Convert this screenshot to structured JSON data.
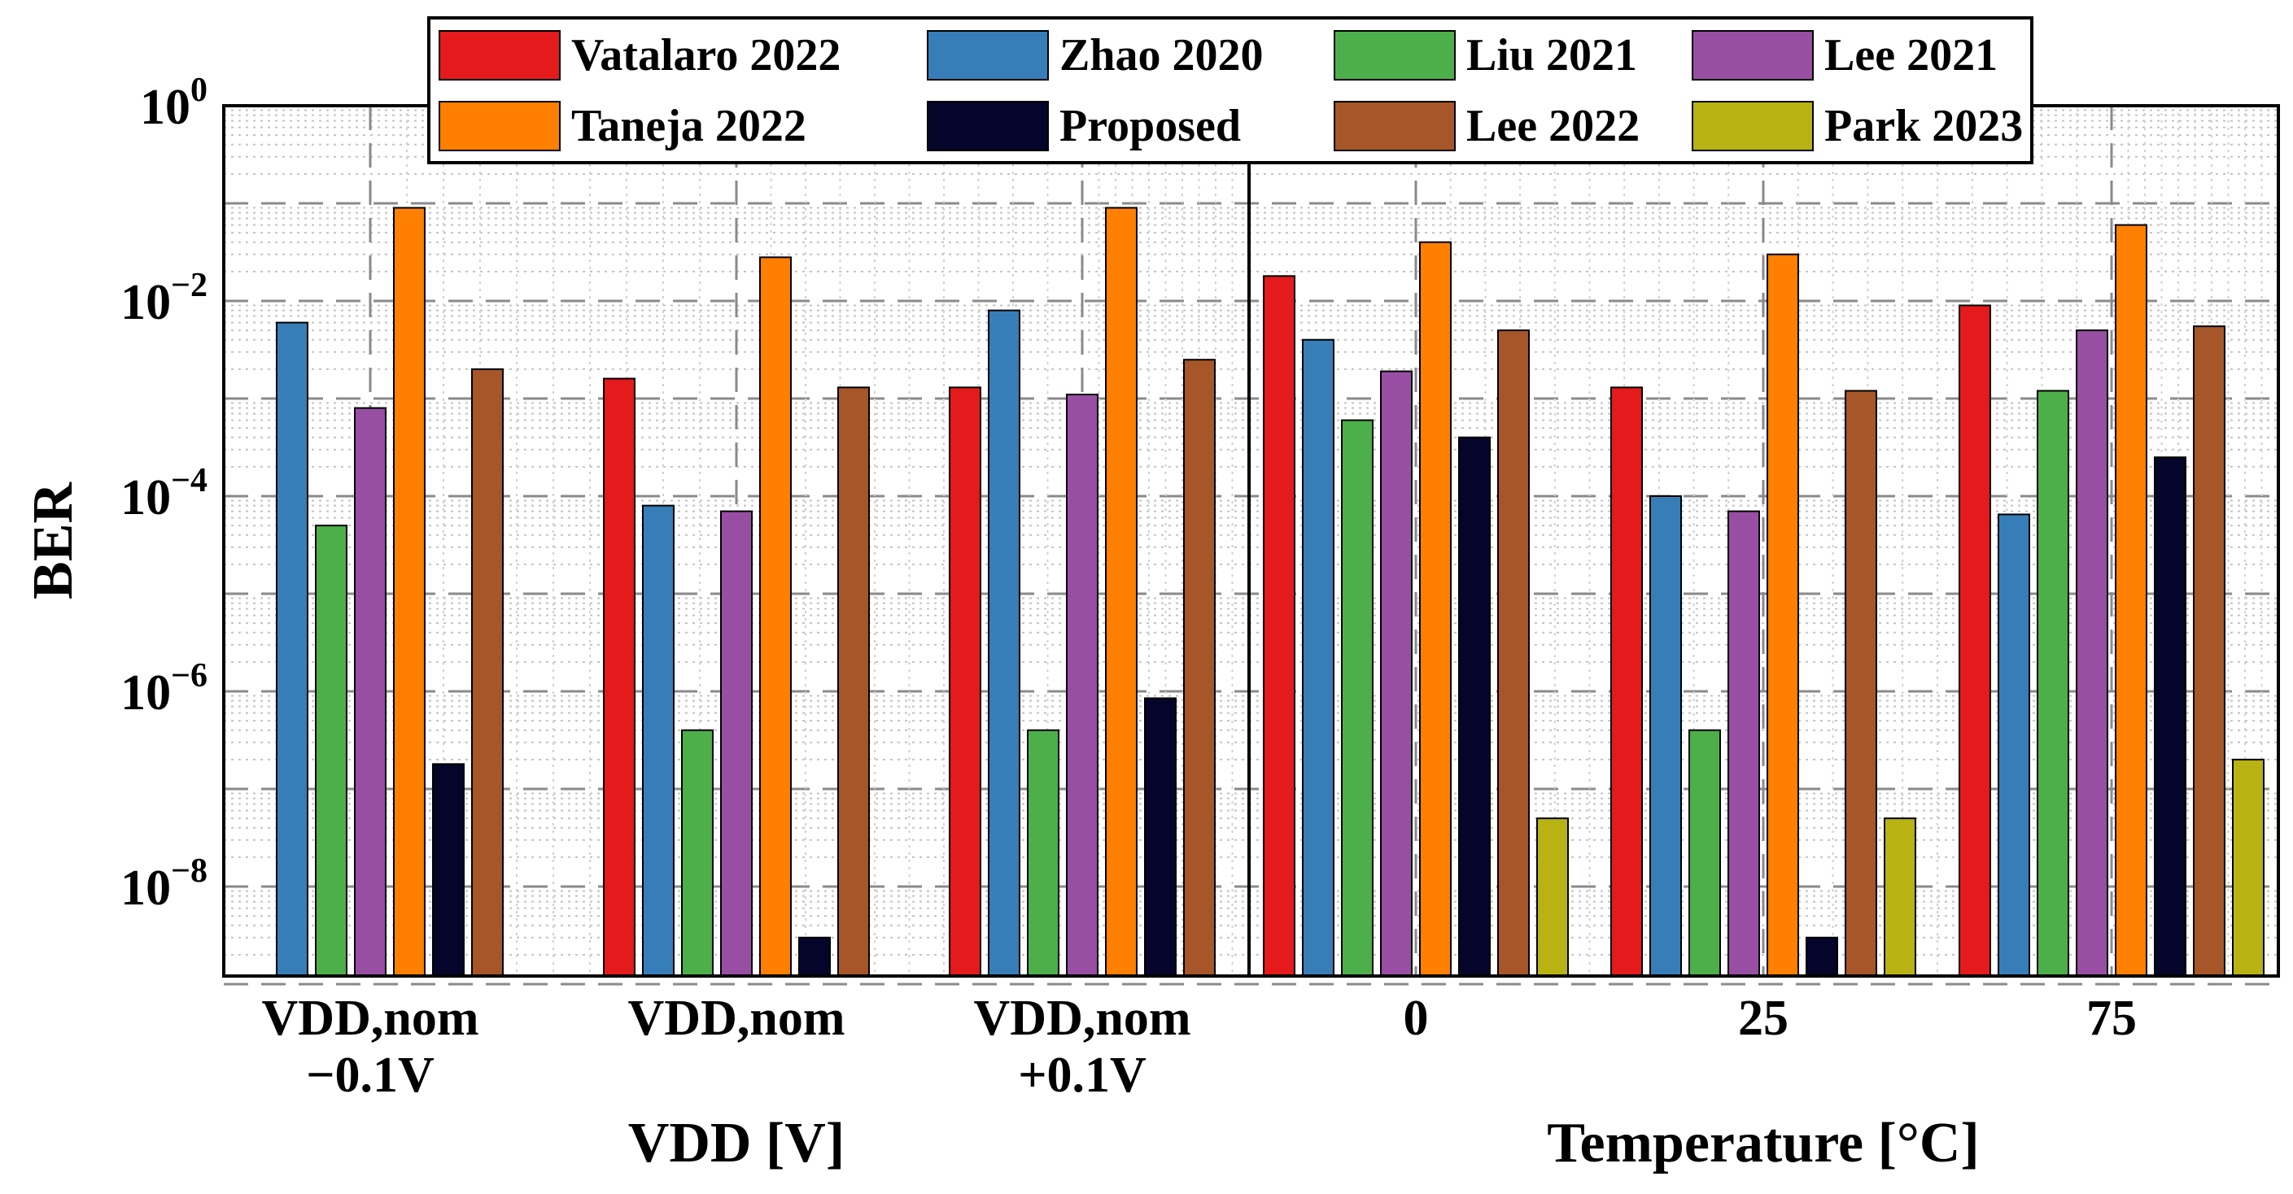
{
  "chart_data": {
    "type": "bar",
    "yscale": "log",
    "ylabel": "BER",
    "ylim": [
      1e-09,
      1
    ],
    "grid": true,
    "legend_position": "top",
    "colors": {
      "Vatalaro 2022": "#e41a1c",
      "Zhao 2020": "#377eb8",
      "Liu 2021": "#4daf4a",
      "Lee 2021": "#984ea3",
      "Taneja 2022": "#ff7f00",
      "Proposed": "#05052b",
      "Lee 2022": "#a65628",
      "Park 2023": "#b8b213"
    },
    "legend": [
      "Vatalaro 2022",
      "Zhao 2020",
      "Liu 2021",
      "Lee 2021",
      "Taneja 2022",
      "Proposed",
      "Lee 2022",
      "Park 2023"
    ],
    "y_tick_labels": [
      {
        "base": "10",
        "exp": "0"
      },
      {
        "base": "10",
        "exp": "−2"
      },
      {
        "base": "10",
        "exp": "−4"
      },
      {
        "base": "10",
        "exp": "−6"
      },
      {
        "base": "10",
        "exp": "−8"
      }
    ],
    "panels": [
      {
        "name": "vdd",
        "xlabel": "VDD [V]",
        "categories": [
          {
            "line1": "VDD,nom",
            "line2": "−0.1V"
          },
          {
            "line1": "VDD,nom",
            "line2": ""
          },
          {
            "line1": "VDD,nom",
            "line2": "+0.1V"
          }
        ],
        "series": [
          {
            "name": "Vatalaro 2022",
            "values": [
              null,
              0.0016,
              0.0013
            ]
          },
          {
            "name": "Zhao 2020",
            "values": [
              0.006,
              8e-05,
              0.008
            ]
          },
          {
            "name": "Liu 2021",
            "values": [
              5e-05,
              4e-07,
              4e-07
            ]
          },
          {
            "name": "Lee 2021",
            "values": [
              0.0008,
              7e-05,
              0.0011
            ]
          },
          {
            "name": "Taneja 2022",
            "values": [
              0.09,
              0.028,
              0.09
            ]
          },
          {
            "name": "Proposed",
            "values": [
              1.8e-07,
              3e-09,
              8.5e-07
            ]
          },
          {
            "name": "Lee 2022",
            "values": [
              0.002,
              0.0013,
              0.0025
            ]
          },
          {
            "name": "Park 2023",
            "values": [
              null,
              null,
              null
            ]
          }
        ]
      },
      {
        "name": "temperature",
        "xlabel": "Temperature [°C]",
        "categories": [
          {
            "line1": "0",
            "line2": ""
          },
          {
            "line1": "25",
            "line2": ""
          },
          {
            "line1": "75",
            "line2": ""
          }
        ],
        "series": [
          {
            "name": "Vatalaro 2022",
            "values": [
              0.018,
              0.0013,
              0.009
            ]
          },
          {
            "name": "Zhao 2020",
            "values": [
              0.004,
              0.0001,
              6.5e-05
            ]
          },
          {
            "name": "Liu 2021",
            "values": [
              0.0006,
              4e-07,
              0.0012
            ]
          },
          {
            "name": "Lee 2021",
            "values": [
              0.0019,
              7e-05,
              0.005
            ]
          },
          {
            "name": "Taneja 2022",
            "values": [
              0.04,
              0.03,
              0.06
            ]
          },
          {
            "name": "Proposed",
            "values": [
              0.0004,
              3e-09,
              0.00025
            ]
          },
          {
            "name": "Lee 2022",
            "values": [
              0.005,
              0.0012,
              0.0055
            ]
          },
          {
            "name": "Park 2023",
            "values": [
              5e-08,
              5e-08,
              2e-07
            ]
          }
        ]
      }
    ]
  }
}
